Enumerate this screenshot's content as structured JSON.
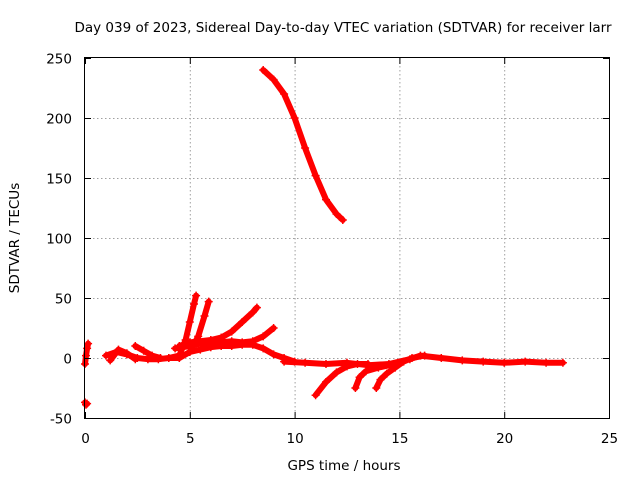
{
  "chart_data": {
    "type": "scatter",
    "title": "Day 039 of 2023, Sidereal Day-to-day VTEC variation (SDTVAR) for receiver larr",
    "xlabel": "GPS time / hours",
    "ylabel": "SDTVAR / TECUs",
    "xlim": [
      0,
      25
    ],
    "ylim": [
      -50,
      250
    ],
    "x_ticks": [
      0,
      5,
      10,
      15,
      20,
      25
    ],
    "x_tick_labels": [
      "0",
      "5",
      "10",
      "15",
      "20",
      "25"
    ],
    "y_ticks": [
      -50,
      0,
      50,
      100,
      150,
      200,
      250
    ],
    "y_tick_labels": [
      "-50",
      "0",
      "50",
      "100",
      "150",
      "200",
      "250"
    ],
    "grid": true,
    "legend": "none",
    "color": "#ff0000",
    "series": [
      {
        "x": [
          8.5,
          9.0,
          9.5,
          10.0,
          10.5,
          11.0,
          11.5,
          12.0,
          12.3
        ],
        "y": [
          240,
          232,
          220,
          200,
          175,
          152,
          132,
          120,
          115
        ]
      },
      {
        "x": [
          0.0,
          0.05,
          0.1
        ],
        "y": [
          -37,
          -39,
          -38
        ]
      },
      {
        "x": [
          0.0,
          0.05,
          0.1,
          0.15
        ],
        "y": [
          -5,
          2,
          8,
          12
        ]
      },
      {
        "x": [
          1.0,
          1.5,
          2.0,
          2.5,
          3.0,
          3.5,
          4.0,
          4.5
        ],
        "y": [
          2,
          5,
          3,
          0,
          -1,
          -1,
          0,
          0
        ]
      },
      {
        "x": [
          1.2,
          1.6,
          2.0,
          2.4
        ],
        "y": [
          -2,
          7,
          4,
          -1
        ]
      },
      {
        "x": [
          2.4,
          2.8,
          3.2,
          3.6
        ],
        "y": [
          10,
          6,
          2,
          0
        ]
      },
      {
        "x": [
          4.0,
          4.5,
          4.8,
          5.0,
          5.2,
          5.3
        ],
        "y": [
          0,
          2,
          15,
          30,
          45,
          52
        ]
      },
      {
        "x": [
          4.5,
          5.0,
          5.4,
          5.7,
          5.9
        ],
        "y": [
          0,
          5,
          18,
          35,
          47
        ]
      },
      {
        "x": [
          4.5,
          5.0,
          5.5,
          6.0,
          6.5,
          7.0,
          7.5,
          8.0,
          8.2
        ],
        "y": [
          10,
          13,
          14,
          15,
          17,
          22,
          30,
          38,
          42
        ]
      },
      {
        "x": [
          4.3,
          5.0,
          5.5,
          6.0,
          6.5,
          7.0,
          7.5,
          8.0,
          8.5,
          9.0
        ],
        "y": [
          8,
          10,
          12,
          12,
          13,
          14,
          13,
          14,
          18,
          25
        ]
      },
      {
        "x": [
          5.0,
          5.5,
          6.0,
          6.5,
          7.0,
          7.5,
          8.0,
          8.5,
          9.0,
          9.5,
          10.0
        ],
        "y": [
          5,
          7,
          9,
          10,
          10,
          11,
          11,
          8,
          3,
          0,
          -3
        ]
      },
      {
        "x": [
          9.5,
          10.5,
          11.5,
          12.5,
          13.5,
          14.5,
          15.5,
          16.0,
          17.0,
          18.0,
          19.0,
          20.0,
          21.0,
          22.0,
          22.8
        ],
        "y": [
          -3,
          -4,
          -5,
          -4,
          -6,
          -5,
          -1,
          2,
          0,
          -2,
          -3,
          -4,
          -3,
          -4,
          -4
        ]
      },
      {
        "x": [
          11.0,
          11.5,
          12.0,
          12.5,
          13.0,
          13.5
        ],
        "y": [
          -31,
          -20,
          -12,
          -7,
          -5,
          -5
        ]
      },
      {
        "x": [
          12.9,
          13.1,
          13.4,
          14.0,
          14.8
        ],
        "y": [
          -25,
          -16,
          -11,
          -8,
          -5
        ]
      },
      {
        "x": [
          13.9,
          14.1,
          14.4,
          14.8,
          15.2,
          15.6,
          16.2
        ],
        "y": [
          -25,
          -18,
          -13,
          -8,
          -3,
          0,
          2
        ]
      }
    ]
  }
}
